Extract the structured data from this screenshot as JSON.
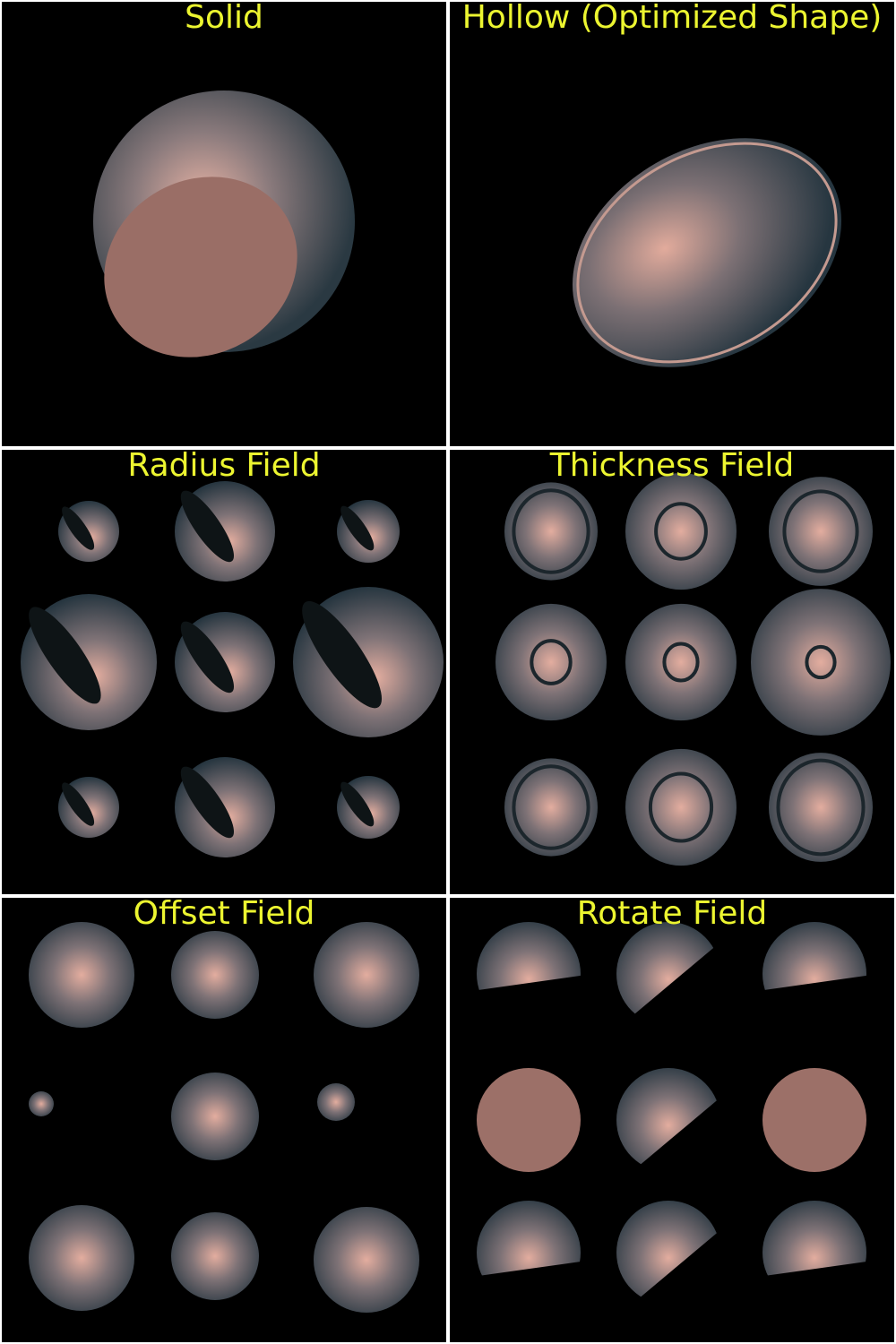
{
  "panels": [
    {
      "id": "solid",
      "title": "Solid"
    },
    {
      "id": "hollow",
      "title": "Hollow (Optimized Shape)"
    },
    {
      "id": "radius",
      "title": "Radius Field"
    },
    {
      "id": "thickness",
      "title": "Thickness Field"
    },
    {
      "id": "offset",
      "title": "Offset Field"
    },
    {
      "id": "rotate",
      "title": "Rotate Field"
    }
  ],
  "colors": {
    "background": "#000000",
    "title": "#ecf530",
    "surface_highlight": "#e0aa9c",
    "surface_mid": "#7a6e72",
    "surface_shadow": "#2c3a42",
    "cut_face": "#9c7068",
    "divider": "#ffffff"
  }
}
